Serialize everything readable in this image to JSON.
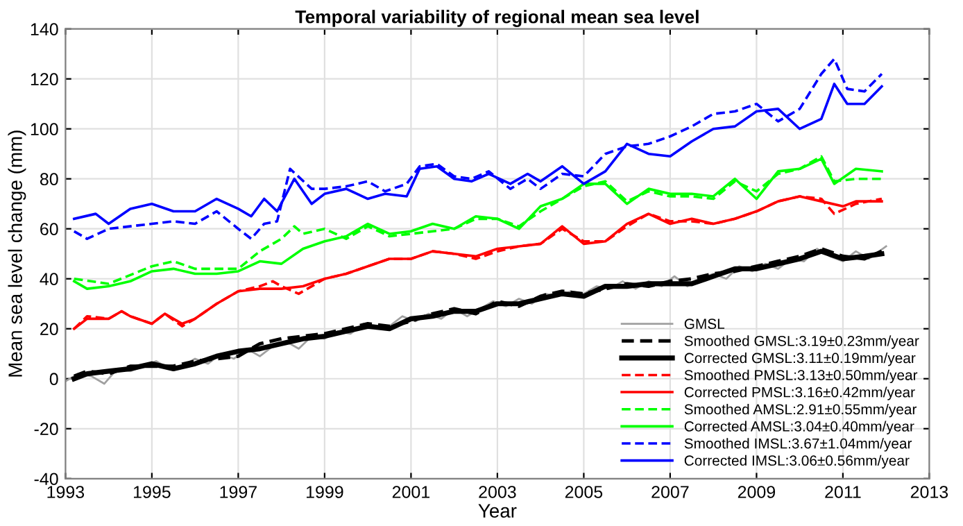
{
  "chart_data": {
    "type": "line",
    "title": "Temporal variability of regional mean sea level",
    "xlabel": "Year",
    "ylabel": "Mean sea level change (mm)",
    "xlim": [
      1993,
      2013
    ],
    "xticks": [
      1993,
      1995,
      1997,
      1999,
      2001,
      2003,
      2005,
      2007,
      2009,
      2011,
      2013
    ],
    "ylim": [
      -40,
      140
    ],
    "yticks": [
      -40,
      -20,
      0,
      20,
      40,
      60,
      80,
      100,
      120,
      140
    ],
    "grid": true,
    "legend": "bottom right",
    "marker": "none",
    "series": [
      {
        "name": "GMSL",
        "color": "#a0a0a0",
        "line_style": "solid",
        "x": [
          1993.0,
          1993.3,
          1993.6,
          1993.9,
          1994.2,
          1994.5,
          1994.8,
          1995.1,
          1995.4,
          1995.7,
          1996.0,
          1996.3,
          1996.6,
          1996.9,
          1997.2,
          1997.5,
          1997.8,
          1998.1,
          1998.4,
          1998.7,
          1999.0,
          1999.3,
          1999.6,
          1999.9,
          2000.2,
          2000.5,
          2000.8,
          2001.1,
          2001.4,
          2001.7,
          2002.0,
          2002.3,
          2002.6,
          2002.9,
          2003.2,
          2003.5,
          2003.8,
          2004.1,
          2004.4,
          2004.7,
          2005.0,
          2005.3,
          2005.6,
          2005.9,
          2006.2,
          2006.5,
          2006.8,
          2007.1,
          2007.4,
          2007.7,
          2008.0,
          2008.3,
          2008.6,
          2008.9,
          2009.2,
          2009.5,
          2009.8,
          2010.1,
          2010.4,
          2010.7,
          2011.0,
          2011.3,
          2011.6,
          2012.0
        ],
        "values": [
          -1,
          2,
          1,
          -2,
          4,
          3,
          5,
          7,
          4,
          5,
          8,
          6,
          10,
          8,
          12,
          9,
          13,
          15,
          12,
          17,
          16,
          19,
          18,
          22,
          20,
          21,
          25,
          23,
          26,
          24,
          28,
          25,
          28,
          31,
          29,
          32,
          30,
          34,
          33,
          35,
          34,
          37,
          36,
          39,
          36,
          39,
          37,
          41,
          37,
          40,
          42,
          40,
          45,
          43,
          46,
          44,
          48,
          47,
          52,
          49,
          47,
          51,
          48,
          53
        ]
      },
      {
        "name": "Smoothed GMSL:3.19±0.23mm/year",
        "color": "#000000",
        "line_style": "dashed",
        "x": [
          1993.2,
          1993.5,
          1994.0,
          1994.5,
          1995.0,
          1995.5,
          1996.0,
          1996.5,
          1997.0,
          1997.5,
          1998.0,
          1998.5,
          1999.0,
          1999.5,
          2000.0,
          2000.5,
          2001.0,
          2001.5,
          2002.0,
          2002.5,
          2003.0,
          2003.5,
          2004.0,
          2004.5,
          2005.0,
          2005.5,
          2006.0,
          2006.5,
          2007.0,
          2007.5,
          2008.0,
          2008.5,
          2009.0,
          2009.5,
          2010.0,
          2010.5,
          2011.0,
          2011.5,
          2011.9
        ],
        "values": [
          1,
          3,
          2,
          5,
          5,
          5,
          7,
          8,
          9,
          14,
          16,
          17,
          18,
          20,
          22,
          21,
          23,
          26,
          28,
          26,
          31,
          29,
          33,
          35,
          34,
          36,
          38,
          37,
          39,
          40,
          42,
          43,
          45,
          47,
          49,
          52,
          49,
          48,
          51
        ]
      },
      {
        "name": "Corrected GMSL:3.11±0.19mm/year",
        "color": "#000000",
        "line_style": "solid",
        "x": [
          1993.2,
          1993.5,
          1994.0,
          1994.5,
          1995.0,
          1995.5,
          1996.0,
          1996.5,
          1997.0,
          1997.5,
          1998.0,
          1998.5,
          1999.0,
          1999.5,
          2000.0,
          2000.5,
          2001.0,
          2001.5,
          2002.0,
          2002.5,
          2003.0,
          2003.5,
          2004.0,
          2004.5,
          2005.0,
          2005.5,
          2006.0,
          2006.5,
          2007.0,
          2007.5,
          2008.0,
          2008.5,
          2009.0,
          2009.5,
          2010.0,
          2010.5,
          2011.0,
          2011.5,
          2011.9
        ],
        "values": [
          0,
          2,
          3,
          4,
          6,
          4,
          6,
          9,
          11,
          12,
          14,
          16,
          17,
          19,
          21,
          20,
          24,
          25,
          27,
          27,
          30,
          30,
          32,
          34,
          33,
          37,
          37,
          38,
          38,
          38,
          41,
          44,
          44,
          46,
          48,
          51,
          48,
          49,
          50
        ]
      },
      {
        "name": "Smoothed PMSL:3.13±0.50mm/year",
        "color": "#ff0000",
        "line_style": "dashed",
        "x": [
          1993.2,
          1993.5,
          1994.0,
          1994.3,
          1994.5,
          1995.0,
          1995.3,
          1995.7,
          1996.0,
          1996.5,
          1997.0,
          1997.5,
          1997.8,
          1998.0,
          1998.4,
          1999.0,
          1999.5,
          2000.0,
          2000.5,
          2001.0,
          2001.5,
          2002.0,
          2002.5,
          2003.0,
          2003.5,
          2004.0,
          2004.5,
          2005.0,
          2005.5,
          2006.0,
          2006.5,
          2007.0,
          2007.5,
          2008.0,
          2008.5,
          2009.0,
          2009.5,
          2010.0,
          2010.5,
          2010.8,
          2011.3,
          2011.9
        ],
        "values": [
          20,
          25,
          24,
          27,
          25,
          22,
          26,
          21,
          24,
          30,
          35,
          37,
          39,
          37,
          34,
          40,
          42,
          45,
          48,
          48,
          51,
          50,
          48,
          51,
          53,
          54,
          60,
          55,
          55,
          61,
          66,
          63,
          63,
          62,
          64,
          67,
          71,
          73,
          72,
          66,
          70,
          72
        ]
      },
      {
        "name": "Corrected PMSL:3.16±0.42mm/year",
        "color": "#ff0000",
        "line_style": "solid",
        "x": [
          1993.2,
          1993.5,
          1994.0,
          1994.3,
          1994.5,
          1995.0,
          1995.3,
          1995.7,
          1996.0,
          1996.5,
          1997.0,
          1997.5,
          1998.0,
          1998.5,
          1999.0,
          1999.5,
          2000.0,
          2000.5,
          2001.0,
          2001.5,
          2002.0,
          2002.5,
          2003.0,
          2003.5,
          2004.0,
          2004.5,
          2005.0,
          2005.5,
          2006.0,
          2006.5,
          2007.0,
          2007.5,
          2008.0,
          2008.5,
          2009.0,
          2009.5,
          2010.0,
          2010.5,
          2011.0,
          2011.3,
          2011.9
        ],
        "values": [
          20,
          24,
          24,
          27,
          25,
          22,
          26,
          22,
          24,
          30,
          35,
          36,
          36,
          37,
          40,
          42,
          45,
          48,
          48,
          51,
          50,
          49,
          52,
          53,
          54,
          61,
          54,
          55,
          62,
          66,
          62,
          64,
          62,
          64,
          67,
          71,
          73,
          71,
          69,
          71,
          71
        ]
      },
      {
        "name": "Smoothed AMSL:2.91±0.55mm/year",
        "color": "#00ff00",
        "line_style": "dashed",
        "x": [
          1993.2,
          1994.0,
          1995.0,
          1995.5,
          1996.0,
          1997.0,
          1997.5,
          1998.0,
          1998.3,
          1998.5,
          1999.0,
          1999.5,
          2000.0,
          2000.5,
          2001.0,
          2002.0,
          2002.5,
          2003.0,
          2003.5,
          2004.0,
          2004.5,
          2005.0,
          2005.5,
          2006.0,
          2006.5,
          2007.0,
          2007.5,
          2008.0,
          2008.5,
          2009.0,
          2009.5,
          2010.0,
          2010.5,
          2010.8,
          2011.3,
          2011.9
        ],
        "values": [
          40,
          38,
          45,
          47,
          44,
          44,
          51,
          56,
          61,
          58,
          60,
          56,
          61,
          57,
          58,
          60,
          64,
          64,
          61,
          67,
          72,
          77,
          79,
          71,
          75,
          73,
          73,
          72,
          79,
          75,
          82,
          84,
          89,
          79,
          80,
          80
        ]
      },
      {
        "name": "Corrected AMSL:3.04±0.40mm/year",
        "color": "#00ff00",
        "line_style": "solid",
        "x": [
          1993.2,
          1993.5,
          1994.0,
          1994.5,
          1995.0,
          1995.5,
          1996.0,
          1996.5,
          1997.0,
          1997.5,
          1998.0,
          1998.5,
          1999.0,
          1999.5,
          2000.0,
          2000.5,
          2001.0,
          2001.5,
          2002.0,
          2002.5,
          2003.0,
          2003.5,
          2004.0,
          2004.5,
          2005.0,
          2005.5,
          2006.0,
          2006.5,
          2007.0,
          2007.5,
          2008.0,
          2008.5,
          2009.0,
          2009.5,
          2010.0,
          2010.5,
          2010.8,
          2011.3,
          2011.9
        ],
        "values": [
          39,
          36,
          37,
          39,
          43,
          44,
          42,
          42,
          43,
          47,
          46,
          52,
          55,
          57,
          62,
          58,
          59,
          62,
          60,
          65,
          64,
          60,
          69,
          72,
          78,
          78,
          70,
          76,
          74,
          74,
          73,
          80,
          72,
          83,
          84,
          88,
          78,
          84,
          83
        ]
      },
      {
        "name": "Smoothed IMSL:3.67±1.04mm/year",
        "color": "#0000ff",
        "line_style": "dashed",
        "x": [
          1993.2,
          1993.5,
          1994.0,
          1994.5,
          1995.0,
          1995.5,
          1996.0,
          1996.5,
          1997.0,
          1997.3,
          1997.6,
          1997.9,
          1998.2,
          1998.7,
          1999.0,
          1999.5,
          2000.0,
          2000.4,
          2000.9,
          2001.2,
          2001.6,
          2002.0,
          2002.4,
          2002.8,
          2003.3,
          2003.7,
          2004.0,
          2004.5,
          2005.0,
          2005.5,
          2006.0,
          2006.5,
          2007.0,
          2007.5,
          2008.0,
          2008.5,
          2009.0,
          2009.5,
          2010.0,
          2010.5,
          2010.8,
          2011.1,
          2011.5,
          2011.9
        ],
        "values": [
          59,
          56,
          60,
          61,
          62,
          63,
          62,
          67,
          60,
          56,
          62,
          63,
          84,
          76,
          76,
          77,
          79,
          75,
          78,
          85,
          86,
          81,
          80,
          83,
          76,
          80,
          76,
          82,
          81,
          90,
          93,
          94,
          97,
          101,
          106,
          107,
          110,
          103,
          108,
          122,
          128,
          116,
          115,
          122
        ]
      },
      {
        "name": "Corrected IMSL:3.06±0.56mm/year",
        "color": "#0000ff",
        "line_style": "solid",
        "x": [
          1993.2,
          1993.7,
          1994.0,
          1994.5,
          1995.0,
          1995.5,
          1996.0,
          1996.5,
          1997.0,
          1997.3,
          1997.6,
          1997.9,
          1998.3,
          1998.7,
          1999.0,
          1999.5,
          2000.0,
          2000.4,
          2000.9,
          2001.2,
          2001.6,
          2002.0,
          2002.4,
          2002.8,
          2003.3,
          2003.7,
          2004.0,
          2004.5,
          2005.0,
          2005.5,
          2006.0,
          2006.5,
          2007.0,
          2007.5,
          2008.0,
          2008.5,
          2009.0,
          2009.5,
          2010.0,
          2010.5,
          2010.8,
          2011.1,
          2011.5,
          2011.9
        ],
        "values": [
          64,
          66,
          62,
          68,
          70,
          67,
          67,
          72,
          68,
          65,
          72,
          67,
          80,
          70,
          74,
          76,
          72,
          74,
          73,
          84,
          85,
          80,
          79,
          82,
          78,
          82,
          79,
          85,
          78,
          83,
          94,
          90,
          89,
          95,
          100,
          101,
          107,
          108,
          100,
          104,
          118,
          110,
          110,
          117
        ]
      }
    ]
  }
}
